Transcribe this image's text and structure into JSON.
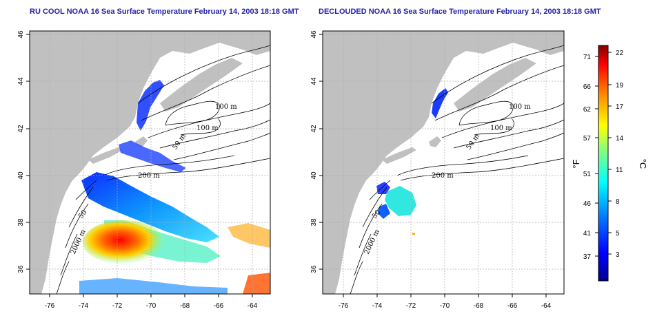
{
  "panels": [
    {
      "title": "RU COOL NOAA 16 Sea Surface Temperature February 14, 2003 18:18 GMT",
      "x_ticks": [
        "-76",
        "-74",
        "-72",
        "-70",
        "-68",
        "-66",
        "-64"
      ],
      "y_ticks": [
        "36",
        "38",
        "40",
        "42",
        "44",
        "46"
      ],
      "contour_labels": [
        "100 m",
        "100 m",
        "50 m",
        "200 m",
        "50",
        "2000 m"
      ]
    },
    {
      "title": "DECLOUDED NOAA 16 Sea Surface Temperature February 14, 2003 18:18 GMT",
      "x_ticks": [
        "-76",
        "-74",
        "-72",
        "-70",
        "-68",
        "-66",
        "-64"
      ],
      "y_ticks": [
        "36",
        "38",
        "40",
        "42",
        "44",
        "46"
      ],
      "contour_labels": [
        "100 m",
        "100 m",
        "50 m",
        "200 m",
        "50",
        "2000 m"
      ]
    }
  ],
  "colorbar": {
    "fahrenheit_ticks": [
      "71",
      "66",
      "62",
      "57",
      "51",
      "46",
      "41",
      "37"
    ],
    "celsius_ticks": [
      "22",
      "19",
      "17",
      "14",
      "11",
      "8",
      "5",
      "3"
    ],
    "fahrenheit_unit": "°F",
    "celsius_unit": "°C",
    "colors": [
      "#00008f",
      "#0000ff",
      "#0080ff",
      "#00ffff",
      "#80ff80",
      "#ffff00",
      "#ff8000",
      "#ff0000",
      "#800000"
    ]
  },
  "colors": {
    "land": "#c0c0c0",
    "title": "#1f1fa8",
    "grid": "#aaaaaa"
  }
}
